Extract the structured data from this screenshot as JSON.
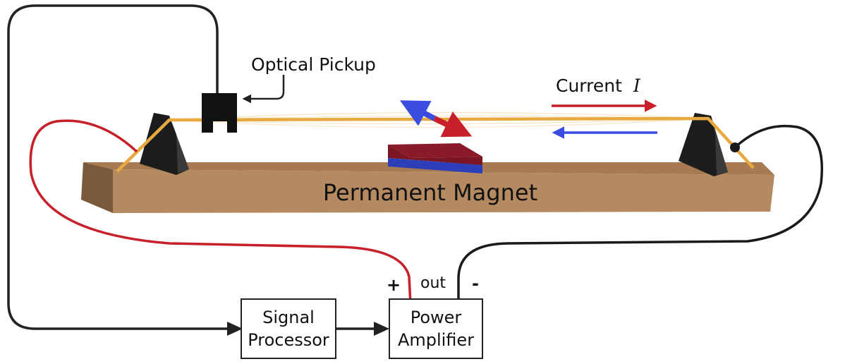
{
  "labels": {
    "optical_pickup": "Optical Pickup",
    "current_prefix": "Current",
    "current_symbol": "I",
    "permanent_magnet": "Permanent Magnet",
    "plus": "+",
    "out": "out",
    "minus": "-",
    "signal_processor_line1": "Signal",
    "signal_processor_line2": "Processor",
    "power_amplifier_line1": "Power",
    "power_amplifier_line2": "Amplifier"
  },
  "colors": {
    "base_top": "#b58a60",
    "base_front": "#b08358",
    "base_side": "#7a5a3a",
    "wire_gold": "#e8a940",
    "positive_wire": "#c8202a",
    "negative_wire": "#1a1a1a",
    "arrow_red": "#c8202a",
    "arrow_blue": "#3a4de0",
    "magnet_red": "#8a1a28",
    "magnet_blue": "#2d3fb8"
  },
  "icons": {
    "current_arrows": "opposing-arrows",
    "magnetic_moment": "double-headed-arrow"
  }
}
